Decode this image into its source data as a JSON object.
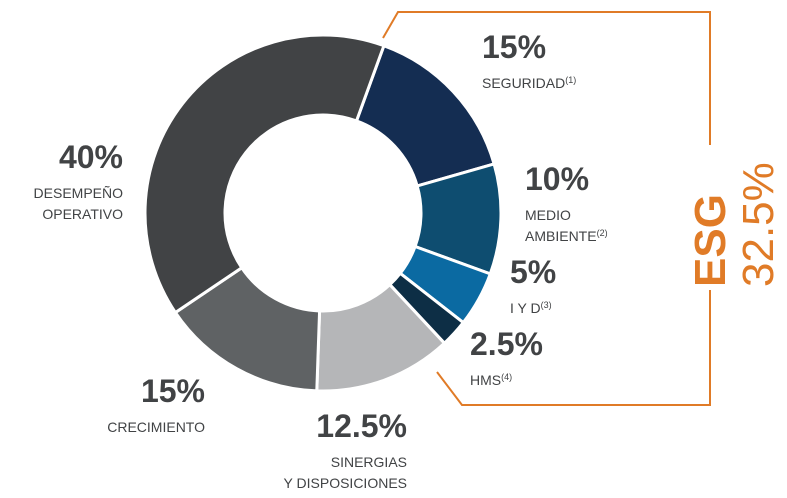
{
  "chart_data": {
    "type": "donut",
    "categories": [
      [
        "SEGURIDAD"
      ],
      [
        "MEDIO",
        "AMBIENTE"
      ],
      [
        "I Y D"
      ],
      [
        "HMS"
      ],
      [
        "SINERGIAS",
        "Y DISPOSICIONES"
      ],
      [
        "CRECIMIENTO"
      ],
      [
        "DESEMPEÑO",
        "OPERATIVO"
      ]
    ],
    "markers": [
      "(1)",
      "(2)",
      "(3)",
      "(4)",
      null,
      null,
      null
    ],
    "values": [
      15,
      10,
      5,
      2.5,
      12.5,
      15,
      40
    ],
    "value_labels": [
      "15%",
      "10%",
      "5%",
      "2.5%",
      "12.5%",
      "15%",
      "40%"
    ],
    "colors": [
      "#142d52",
      "#0e4d70",
      "#0b6aa2",
      "#0d2e45",
      "#b5b6b8",
      "#5f6264",
      "#414345"
    ],
    "annotation": {
      "title": "ESG",
      "label": "32.5%",
      "color": "#e07b27"
    }
  }
}
